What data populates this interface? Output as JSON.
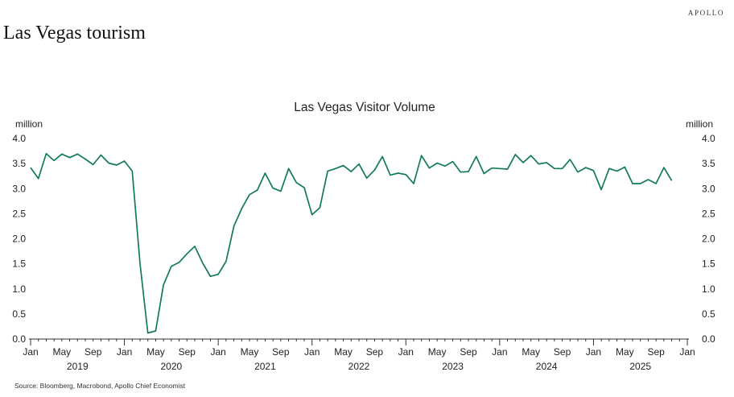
{
  "brand": "APOLLO",
  "page_title": "Las Vegas tourism",
  "source": "Source: Bloomberg, Macrobond, Apollo Chief Economist",
  "colors": {
    "line": "#117a5b",
    "axis": "#333333"
  },
  "chart_data": {
    "type": "line",
    "title": "Las Vegas Visitor Volume",
    "ylabel_left": "million",
    "ylabel_right": "million",
    "ylim": [
      0,
      4
    ],
    "yticks": [
      "0.0",
      "0.5",
      "1.0",
      "1.5",
      "2.0",
      "2.5",
      "3.0",
      "3.5",
      "4.0"
    ],
    "grid": false,
    "x_start": "2019-01",
    "month_ticks": [
      "Jan",
      "May",
      "Sep",
      "Jan",
      "May",
      "Sep",
      "Jan",
      "May",
      "Sep",
      "Jan",
      "May",
      "Sep",
      "Jan",
      "May",
      "Sep",
      "Jan",
      "May",
      "Sep",
      "Jan",
      "May",
      "Sep",
      "Jan"
    ],
    "years": [
      "2019",
      "2020",
      "2021",
      "2022",
      "2023",
      "2024",
      "2025"
    ],
    "series": [
      {
        "values": [
          3.42,
          3.2,
          3.7,
          3.56,
          3.69,
          3.62,
          3.69,
          3.59,
          3.48,
          3.67,
          3.51,
          3.47,
          3.55,
          3.35,
          1.5,
          0.12,
          0.16,
          1.08,
          1.45,
          1.53,
          1.7,
          1.85,
          1.52,
          1.25,
          1.29,
          1.55,
          2.25,
          2.6,
          2.88,
          2.97,
          3.31,
          3.01,
          2.95,
          3.4,
          3.12,
          3.02,
          2.48,
          2.62,
          3.35,
          3.4,
          3.46,
          3.34,
          3.49,
          3.21,
          3.37,
          3.64,
          3.27,
          3.31,
          3.28,
          3.1,
          3.66,
          3.41,
          3.51,
          3.45,
          3.54,
          3.33,
          3.34,
          3.64,
          3.3,
          3.41,
          3.4,
          3.39,
          3.68,
          3.52,
          3.66,
          3.49,
          3.52,
          3.4,
          3.4,
          3.58,
          3.33,
          3.42,
          3.36,
          2.98,
          3.4,
          3.35,
          3.43,
          3.1,
          3.1,
          3.18,
          3.1,
          3.42,
          3.16
        ]
      }
    ]
  }
}
